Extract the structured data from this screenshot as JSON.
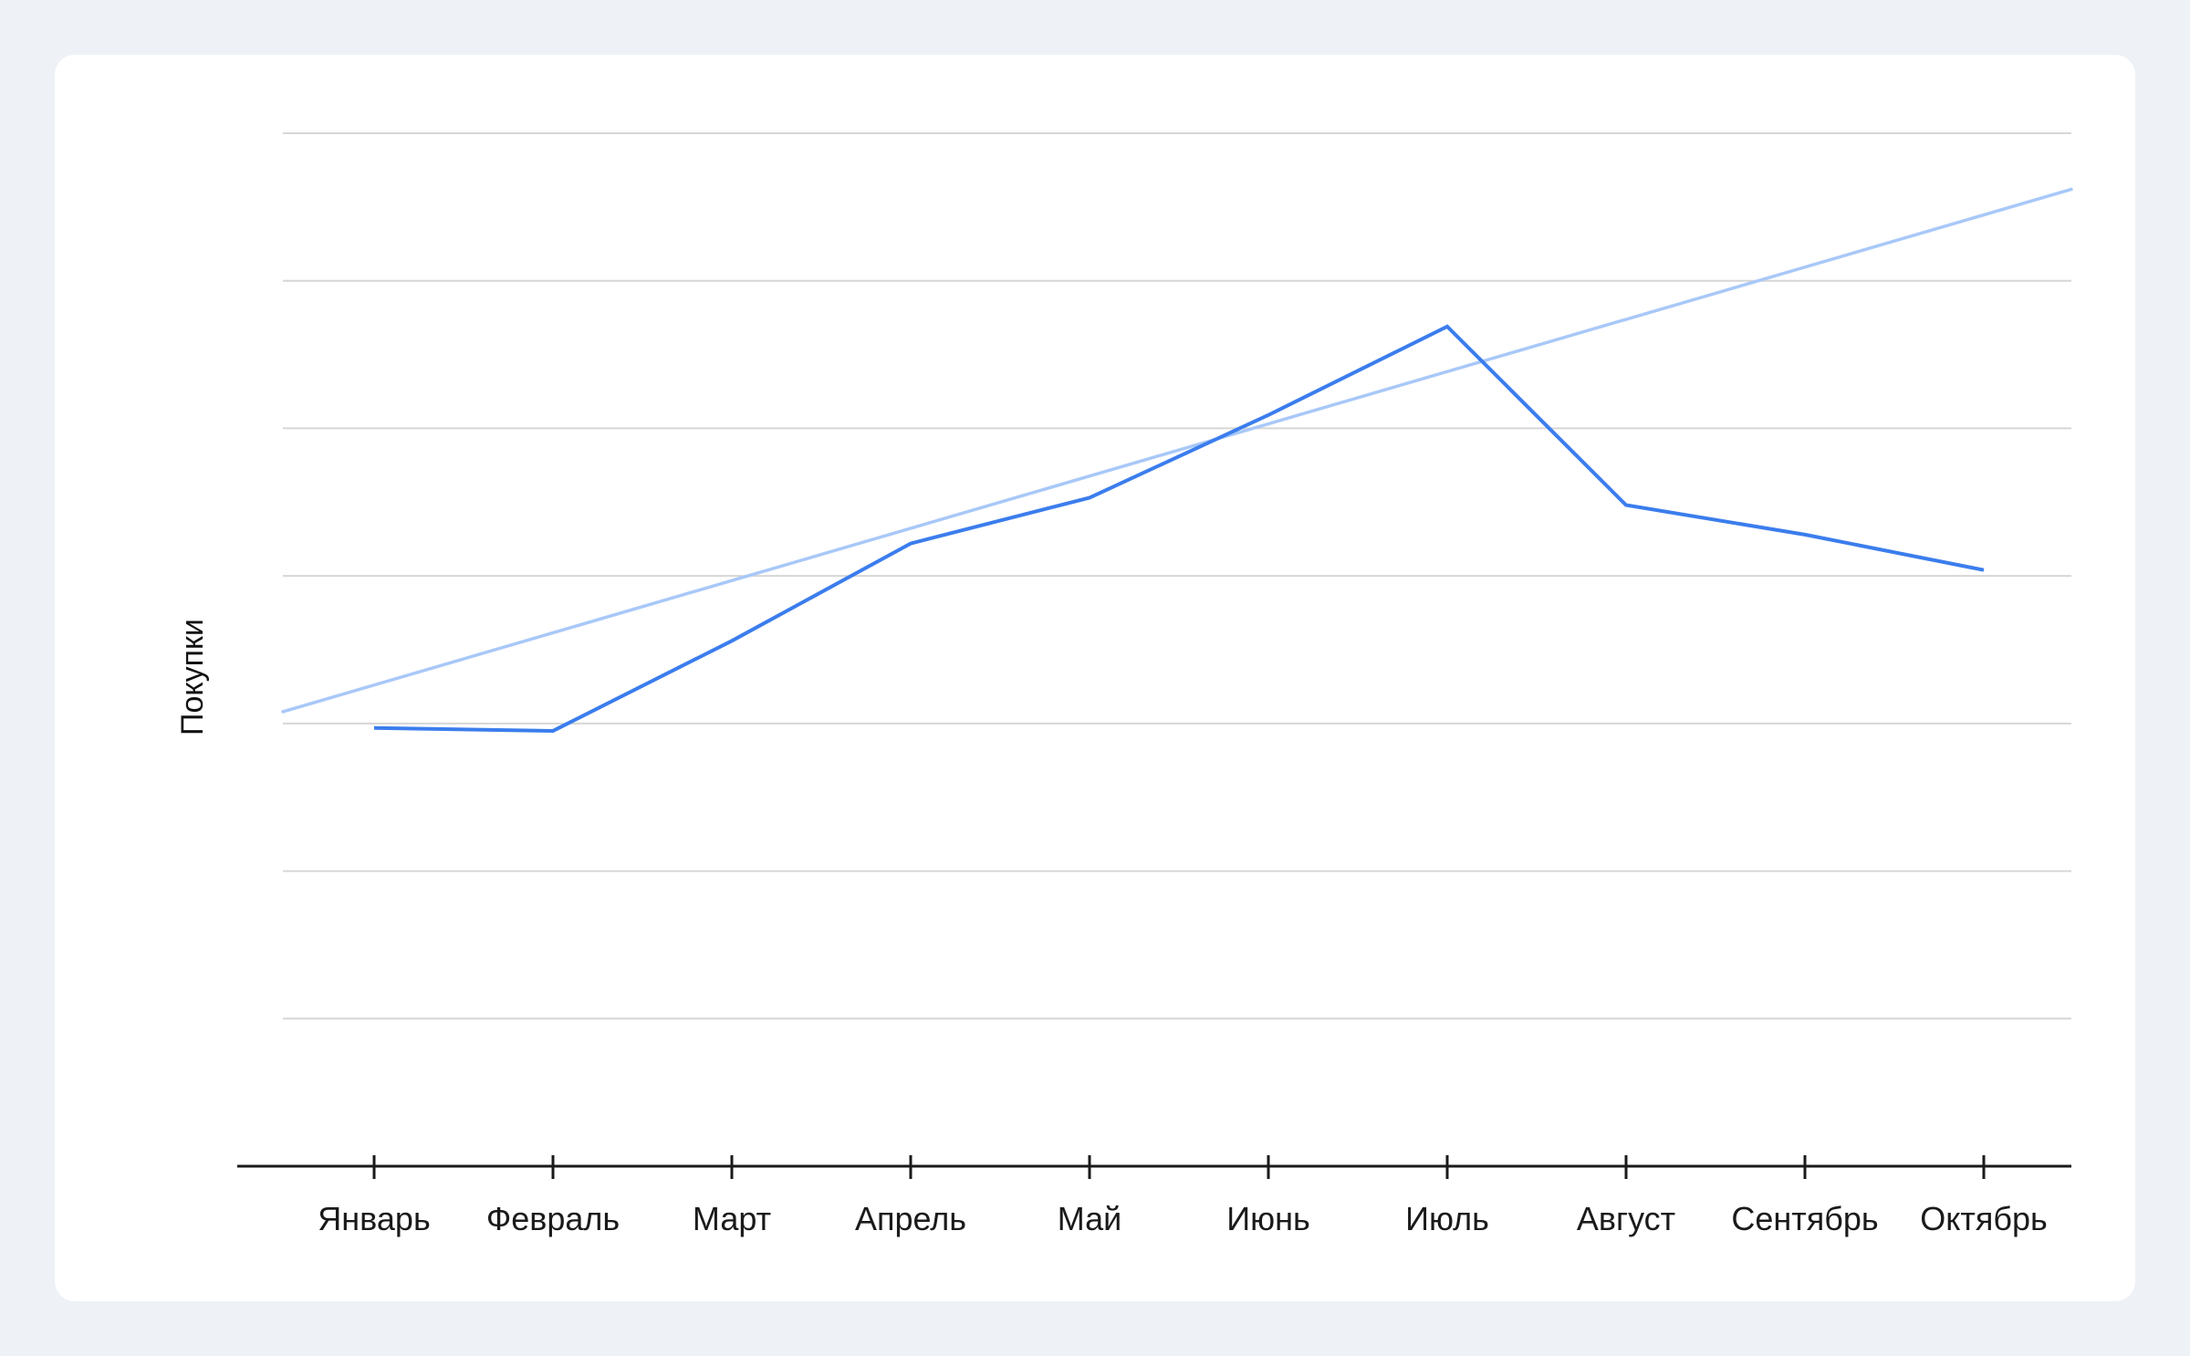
{
  "chart_data": {
    "type": "line",
    "title": "",
    "xlabel": "",
    "ylabel": "Покупки",
    "categories": [
      "Январь",
      "Февраль",
      "Март",
      "Апрель",
      "Май",
      "Июнь",
      "Июль",
      "Август",
      "Сентябрь",
      "Октябрь"
    ],
    "series": [
      {
        "values": [
          0.97,
          0.95,
          1.56,
          2.22,
          2.53,
          3.09,
          3.69,
          2.48,
          2.28,
          2.04
        ],
        "color": "#3b7ded"
      }
    ],
    "trendline": {
      "color": "#a8c8f8",
      "start": 1.08,
      "end": 4.62
    },
    "ylim": [
      -2,
      5
    ],
    "grid": true,
    "legend": "none"
  }
}
